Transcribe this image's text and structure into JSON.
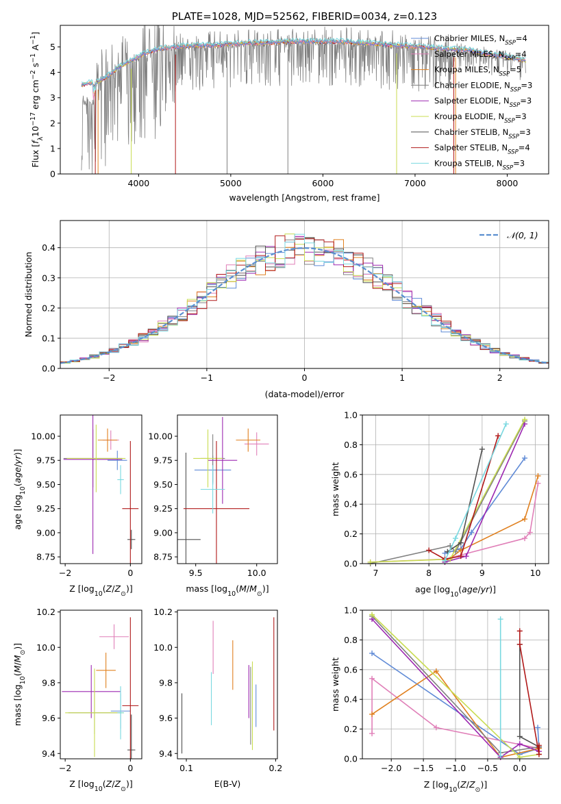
{
  "colors": {
    "chabrier_miles": "#5f8ad6",
    "salpeter_miles": "#e07fb8",
    "kroupa_miles": "#e0801f",
    "chabrier_elodie": "#808080",
    "salpeter_elodie": "#9c27b0",
    "kroupa_elodie": "#c8dc50",
    "chabrier_stelib": "#505050",
    "salpeter_stelib": "#b01818",
    "kroupa_stelib": "#78d8e0",
    "normal": "#5b8fd0"
  },
  "chart_data": [
    {
      "id": "spectrum",
      "type": "line",
      "title": "PLATE=1028, MJD=52562, FIBERID=0034, z=0.123",
      "xlabel": "wavelength [Angstrom, rest frame]",
      "ylabel_parts": [
        "Flux [",
        "f",
        "λ",
        "10",
        "−17",
        " erg cm",
        "−2",
        " s",
        "−1",
        " A",
        "−1",
        "]"
      ],
      "xlim": [
        3150,
        8450
      ],
      "ylim": [
        0,
        5.85
      ],
      "xticks": [
        4000,
        5000,
        6000,
        7000,
        8000
      ],
      "yticks": [
        0,
        1,
        2,
        3,
        4,
        5
      ],
      "grid": false,
      "legend_position": "top-right",
      "legend": [
        {
          "key": "chabrier_miles",
          "name": "Chabrier MILES, N",
          "sub": "SSP",
          "val": "=4"
        },
        {
          "key": "salpeter_miles",
          "name": "Salpeter MILES, N",
          "sub": "SSP",
          "val": "=4"
        },
        {
          "key": "kroupa_miles",
          "name": "Kroupa MILES, N",
          "sub": "SSP",
          "val": "=5"
        },
        {
          "key": "chabrier_elodie",
          "name": "Chabrier ELODIE, N",
          "sub": "SSP",
          "val": "=3"
        },
        {
          "key": "salpeter_elodie",
          "name": "Salpeter ELODIE, N",
          "sub": "SSP",
          "val": "=3"
        },
        {
          "key": "kroupa_elodie",
          "name": "Kroupa ELODIE, N",
          "sub": "SSP",
          "val": "=3"
        },
        {
          "key": "chabrier_stelib",
          "name": "Chabrier STELIB, N",
          "sub": "SSP",
          "val": "=3"
        },
        {
          "key": "salpeter_stelib",
          "name": "Salpeter STELIB, N",
          "sub": "SSP",
          "val": "=4"
        },
        {
          "key": "kroupa_stelib",
          "name": "Kroupa STELIB, N",
          "sub": "SSP",
          "val": "=3"
        }
      ],
      "continuum": {
        "x": [
          3380,
          3450,
          3550,
          3650,
          3750,
          3850,
          3950,
          4050,
          4200,
          4400,
          4600,
          4800,
          5000,
          5200,
          5400,
          5600,
          5800,
          6000,
          6200,
          6400,
          6600,
          6800,
          7000,
          7200,
          7400,
          7600,
          7800,
          8000,
          8200
        ],
        "y": [
          3.5,
          3.55,
          3.6,
          3.8,
          4.1,
          4.3,
          4.5,
          4.7,
          4.9,
          5.0,
          5.05,
          5.05,
          5.1,
          5.15,
          5.15,
          5.2,
          5.2,
          5.2,
          5.2,
          5.15,
          5.1,
          5.05,
          5.0,
          4.95,
          4.9,
          4.85,
          4.7,
          4.6,
          4.45
        ]
      }
    },
    {
      "id": "residuals",
      "type": "step",
      "xlabel": "(data-model)/error",
      "ylabel": "Normed distribution",
      "xlim": [
        -2.5,
        2.5
      ],
      "ylim": [
        0,
        0.49
      ],
      "xticks": [
        -2,
        -1,
        0,
        1,
        2
      ],
      "yticks": [
        0.0,
        0.1,
        0.2,
        0.3,
        0.4
      ],
      "grid": true,
      "legend": "𝒩(0, 1)",
      "legend_position": "top-right",
      "bin_width": 0.1
    },
    {
      "id": "age_vs_Z",
      "type": "errorbar",
      "xlabel": "Z [log10(Z/Z⊙)]",
      "ylabel": "age [log10(age/yr)]",
      "xlim": [
        -2.15,
        0.35
      ],
      "ylim": [
        8.68,
        10.22
      ],
      "xticks": [
        -2,
        0
      ],
      "yticks": [
        8.75,
        9.0,
        9.25,
        9.5,
        9.75,
        10.0
      ],
      "points": [
        {
          "key": "chabrier_miles",
          "x": -0.4,
          "xerr": 0.3,
          "y": 9.75,
          "yerr": 0.1
        },
        {
          "key": "salpeter_miles",
          "x": -0.6,
          "xerr": 0.25,
          "y": 9.96,
          "yerr": 0.1
        },
        {
          "key": "kroupa_miles",
          "x": -0.7,
          "xerr": 0.3,
          "y": 9.96,
          "yerr": 0.12
        },
        {
          "key": "chabrier_elodie",
          "x": -1.15,
          "xerr": 0.9,
          "y": 9.77,
          "yerr": 0.3
        },
        {
          "key": "salpeter_elodie",
          "x": -1.15,
          "xerr": 0.9,
          "y": 9.76,
          "yerr": 0.98
        },
        {
          "key": "kroupa_elodie",
          "x": -1.05,
          "xerr": 0.9,
          "y": 9.77,
          "yerr": 0.35
        },
        {
          "key": "chabrier_stelib",
          "x": 0.03,
          "xerr": 0.12,
          "y": 8.93,
          "yerr": 0.1
        },
        {
          "key": "salpeter_stelib",
          "x": 0.0,
          "xerr": 0.25,
          "y": 9.25,
          "yerr": 0.7
        },
        {
          "key": "kroupa_stelib",
          "x": -0.3,
          "xerr": 0.1,
          "y": 9.55,
          "yerr": 0.15
        }
      ]
    },
    {
      "id": "age_vs_mass",
      "type": "errorbar",
      "xlabel": "mass [log10(M/M⊙)]",
      "ylabel": "",
      "xlim": [
        9.35,
        10.17
      ],
      "ylim": [
        8.68,
        10.22
      ],
      "xticks": [
        9.5,
        10.0
      ],
      "yticks": [
        8.75,
        9.0,
        9.25,
        9.5,
        9.75,
        10.0
      ],
      "points": [
        {
          "key": "chabrier_miles",
          "x": 9.64,
          "xerr": 0.15,
          "y": 9.65,
          "yerr": 0.15
        },
        {
          "key": "salpeter_miles",
          "x": 10.0,
          "xerr": 0.1,
          "y": 9.92,
          "yerr": 0.12
        },
        {
          "key": "kroupa_miles",
          "x": 9.93,
          "xerr": 0.1,
          "y": 9.96,
          "yerr": 0.12
        },
        {
          "key": "chabrier_elodie",
          "x": 9.64,
          "xerr": 0.1,
          "y": 9.77,
          "yerr": 0.25
        },
        {
          "key": "salpeter_elodie",
          "x": 9.72,
          "xerr": 0.12,
          "y": 9.75,
          "yerr": 0.45
        },
        {
          "key": "kroupa_elodie",
          "x": 9.6,
          "xerr": 0.12,
          "y": 9.77,
          "yerr": 0.3
        },
        {
          "key": "chabrier_stelib",
          "x": 9.42,
          "xerr": 0.12,
          "y": 8.93,
          "yerr": 0.9
        },
        {
          "key": "salpeter_stelib",
          "x": 9.67,
          "xerr": 0.27,
          "y": 9.25,
          "yerr": 0.7
        },
        {
          "key": "kroupa_stelib",
          "x": 9.64,
          "xerr": 0.1,
          "y": 9.45,
          "yerr": 0.25
        }
      ]
    },
    {
      "id": "mass_weight_vs_age",
      "type": "line",
      "xlabel": "age [log10(age/yr)]",
      "ylabel": "mass weight",
      "xlim": [
        6.75,
        10.25
      ],
      "ylim": [
        0,
        1.0
      ],
      "xticks": [
        7,
        8,
        9,
        10
      ],
      "yticks": [
        0.0,
        0.2,
        0.4,
        0.6,
        0.8,
        1.0
      ],
      "grid": true,
      "series": [
        {
          "key": "chabrier_miles",
          "x": [
            8.3,
            8.6,
            8.8,
            9.8
          ],
          "y": [
            0.07,
            0.1,
            0.21,
            0.71
          ]
        },
        {
          "key": "salpeter_miles",
          "x": [
            6.9,
            8.3,
            9.8,
            9.9,
            10.05
          ],
          "y": [
            0.01,
            0.03,
            0.17,
            0.21,
            0.54
          ]
        },
        {
          "key": "kroupa_miles",
          "x": [
            8.3,
            8.6,
            9.8,
            10.05
          ],
          "y": [
            0.01,
            0.09,
            0.3,
            0.59
          ]
        },
        {
          "key": "chabrier_elodie",
          "x": [
            6.9,
            8.4,
            8.5,
            9.8
          ],
          "y": [
            0.0,
            0.12,
            0.08,
            0.96
          ]
        },
        {
          "key": "salpeter_elodie",
          "x": [
            8.3,
            8.7,
            9.8
          ],
          "y": [
            0.01,
            0.05,
            0.94
          ]
        },
        {
          "key": "kroupa_elodie",
          "x": [
            6.9,
            8.4,
            9.8
          ],
          "y": [
            0.01,
            0.03,
            0.97
          ]
        },
        {
          "key": "chabrier_stelib",
          "x": [
            8.35,
            8.6,
            9.0
          ],
          "y": [
            0.08,
            0.14,
            0.77
          ]
        },
        {
          "key": "salpeter_stelib",
          "x": [
            8.0,
            8.3,
            8.6,
            9.3
          ],
          "y": [
            0.09,
            0.03,
            0.05,
            0.86
          ]
        },
        {
          "key": "kroupa_stelib",
          "x": [
            8.3,
            8.5,
            9.45
          ],
          "y": [
            0.02,
            0.17,
            0.94
          ]
        }
      ]
    },
    {
      "id": "mass_vs_Z",
      "type": "errorbar",
      "xlabel": "Z [log10(Z/Z⊙)]",
      "ylabel": "mass [log10(M/M⊙)]",
      "xlim": [
        -2.15,
        0.35
      ],
      "ylim": [
        9.37,
        10.21
      ],
      "xticks": [
        -2,
        0
      ],
      "yticks": [
        9.4,
        9.6,
        9.8,
        10.0,
        10.2
      ],
      "points": [
        {
          "key": "chabrier_miles",
          "x": -0.3,
          "xerr": 0.3,
          "y": 9.64,
          "yerr": 0.1
        },
        {
          "key": "salpeter_miles",
          "x": -0.5,
          "xerr": 0.45,
          "y": 10.06,
          "yerr": 0.07
        },
        {
          "key": "kroupa_miles",
          "x": -0.75,
          "xerr": 0.3,
          "y": 9.87,
          "yerr": 0.1
        },
        {
          "key": "chabrier_elodie",
          "x": -1.1,
          "xerr": 0.8,
          "y": 9.63,
          "yerr": 0.12
        },
        {
          "key": "salpeter_elodie",
          "x": -1.2,
          "xerr": 0.9,
          "y": 9.75,
          "yerr": 0.15
        },
        {
          "key": "kroupa_elodie",
          "x": -1.1,
          "xerr": 0.9,
          "y": 9.63,
          "yerr": 0.25
        },
        {
          "key": "chabrier_stelib",
          "x": 0.03,
          "xerr": 0.12,
          "y": 9.42,
          "yerr": 0.2
        },
        {
          "key": "salpeter_stelib",
          "x": 0.0,
          "xerr": 0.25,
          "y": 9.67,
          "yerr": 0.5
        },
        {
          "key": "kroupa_stelib",
          "x": -0.3,
          "xerr": 0.1,
          "y": 9.63,
          "yerr": 0.15
        }
      ]
    },
    {
      "id": "mass_vs_ebv",
      "type": "errorbar",
      "xlabel": "E(B-V)",
      "ylabel": "",
      "xlim": [
        0.09,
        0.202
      ],
      "ylim": [
        9.37,
        10.21
      ],
      "xticks": [
        0.1,
        0.2
      ],
      "yticks": [
        9.4,
        9.6,
        9.8,
        10.0,
        10.2
      ],
      "points": [
        {
          "key": "chabrier_miles",
          "x": 0.178,
          "y": 9.67,
          "yerr": 0.12
        },
        {
          "key": "salpeter_miles",
          "x": 0.13,
          "y": 10.0,
          "yerr": 0.15
        },
        {
          "key": "kroupa_miles",
          "x": 0.152,
          "y": 9.9,
          "yerr": 0.14
        },
        {
          "key": "chabrier_elodie",
          "x": 0.172,
          "y": 9.67,
          "yerr": 0.22
        },
        {
          "key": "salpeter_elodie",
          "x": 0.17,
          "y": 9.75,
          "yerr": 0.15
        },
        {
          "key": "kroupa_elodie",
          "x": 0.174,
          "y": 9.67,
          "yerr": 0.25
        },
        {
          "key": "chabrier_stelib",
          "x": 0.095,
          "y": 9.57,
          "yerr": 0.17
        },
        {
          "key": "salpeter_stelib",
          "x": 0.198,
          "y": 9.85,
          "yerr": 0.32
        },
        {
          "key": "kroupa_stelib",
          "x": 0.128,
          "y": 9.71,
          "yerr": 0.15
        }
      ]
    },
    {
      "id": "mass_weight_vs_Z",
      "type": "line",
      "xlabel": "Z [log10(Z/Z⊙)]",
      "ylabel": "mass weight",
      "xlim": [
        -2.45,
        0.45
      ],
      "ylim": [
        0,
        1.0
      ],
      "xticks": [
        -2.0,
        -1.5,
        -1.0,
        -0.5,
        0.0
      ],
      "yticks": [
        0.0,
        0.2,
        0.4,
        0.6,
        0.8,
        1.0
      ],
      "grid": true,
      "series": [
        {
          "key": "chabrier_miles",
          "x": [
            -2.3,
            0.0,
            0.3,
            0.28
          ],
          "y": [
            0.71,
            0.03,
            0.07,
            0.21
          ]
        },
        {
          "key": "salpeter_miles",
          "x": [
            -2.3,
            -2.3,
            -1.3,
            0.3
          ],
          "y": [
            0.17,
            0.54,
            0.21,
            0.07
          ]
        },
        {
          "key": "kroupa_miles",
          "x": [
            -2.3,
            -1.3,
            -0.3,
            0.3
          ],
          "y": [
            0.3,
            0.59,
            0.01,
            0.07
          ]
        },
        {
          "key": "chabrier_elodie",
          "x": [
            -2.3,
            -0.3,
            0.3
          ],
          "y": [
            0.96,
            0.04,
            0.08
          ]
        },
        {
          "key": "salpeter_elodie",
          "x": [
            -2.3,
            -0.3,
            0.0,
            0.3
          ],
          "y": [
            0.94,
            0.01,
            0.1,
            0.05
          ]
        },
        {
          "key": "kroupa_elodie",
          "x": [
            -2.3,
            0.0,
            0.3
          ],
          "y": [
            0.97,
            0.01,
            0.03
          ]
        },
        {
          "key": "chabrier_stelib",
          "x": [
            0.0,
            0.0,
            0.3
          ],
          "y": [
            0.77,
            0.15,
            0.08
          ]
        },
        {
          "key": "salpeter_stelib",
          "x": [
            0.0,
            0.0,
            0.3,
            0.3
          ],
          "y": [
            0.86,
            0.77,
            0.03,
            0.09
          ]
        },
        {
          "key": "kroupa_stelib",
          "x": [
            -0.3,
            -0.3
          ],
          "y": [
            0.02,
            0.94
          ]
        }
      ]
    }
  ]
}
